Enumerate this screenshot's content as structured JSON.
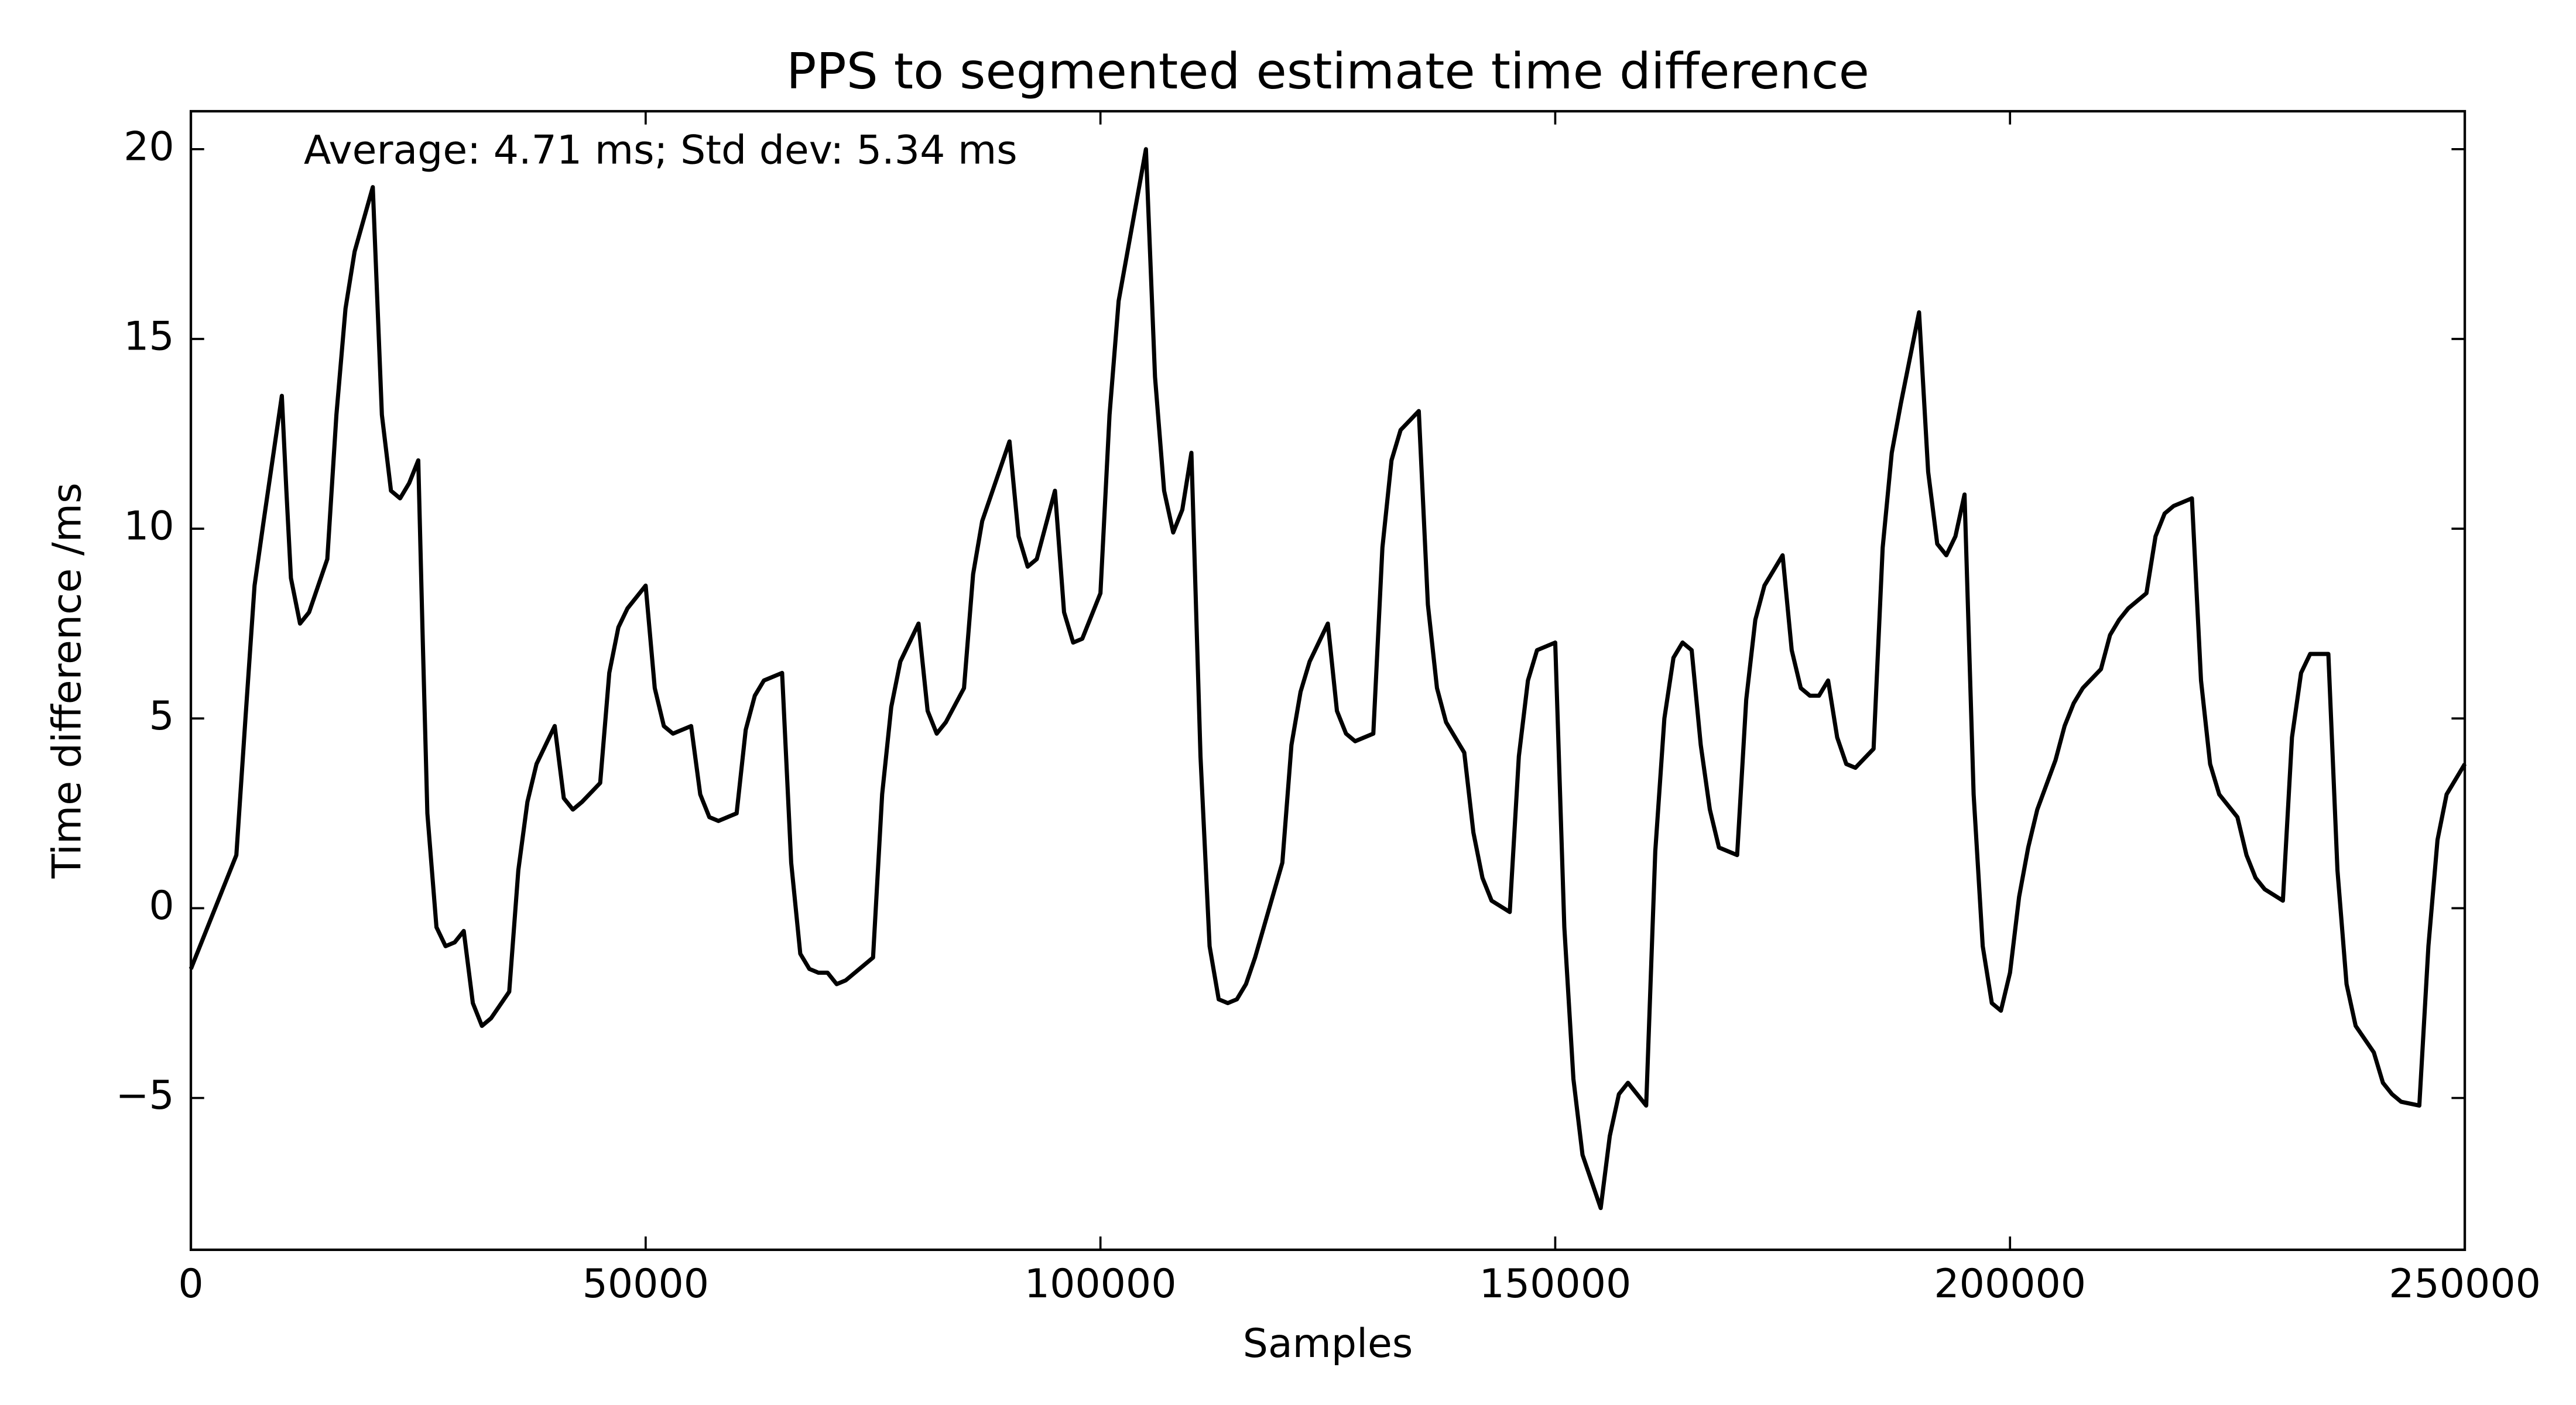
{
  "chart_data": {
    "type": "line",
    "title": "PPS to segmented estimate time difference",
    "annotation": "Average: 4.71 ms;  Std dev: 5.34 ms",
    "xlabel": "Samples",
    "ylabel": "Time difference /ms",
    "xlim": [
      0,
      250000
    ],
    "ylim": [
      -9,
      21
    ],
    "xticks": [
      0,
      50000,
      100000,
      150000,
      200000,
      250000
    ],
    "yticks": [
      {
        "value": -5,
        "label": "−5"
      },
      0,
      5,
      10,
      15,
      20
    ],
    "grid": false,
    "series": [
      {
        "color": "#000000",
        "x": [
          0,
          5000,
          6000,
          7000,
          8000,
          10000,
          10500,
          11000,
          12000,
          13000,
          15000,
          16000,
          17000,
          18000,
          20000,
          20500,
          21000,
          22000,
          23000,
          24000,
          25000,
          25500,
          26000,
          27000,
          28000,
          29000,
          30000,
          31000,
          32000,
          33000,
          35000,
          36000,
          37000,
          38000,
          40000,
          41000,
          42000,
          43000,
          45000,
          46000,
          47000,
          48000,
          50000,
          51000,
          52000,
          53000,
          55000,
          56000,
          57000,
          58000,
          60000,
          61000,
          62000,
          63000,
          65000,
          66000,
          67000,
          68000,
          69000,
          70000,
          71000,
          72000,
          75000,
          76000,
          77000,
          78000,
          80000,
          81000,
          82000,
          83000,
          85000,
          86000,
          87000,
          90000,
          91000,
          92000,
          93000,
          95000,
          96000,
          97000,
          98000,
          100000,
          101000,
          102000,
          105000,
          106000,
          107000,
          108000,
          109000,
          110000,
          111000,
          112000,
          113000,
          114000,
          115000,
          116000,
          117000,
          120000,
          121000,
          122000,
          123000,
          125000,
          126000,
          127000,
          128000,
          130000,
          131000,
          132000,
          133000,
          135000,
          136000,
          137000,
          138000,
          140000,
          141000,
          142000,
          143000,
          145000,
          146000,
          147000,
          148000,
          150000,
          151000,
          152000,
          153000,
          155000,
          156000,
          157000,
          158000,
          160000,
          161000,
          162000,
          163000,
          164000,
          165000,
          166000,
          167000,
          168000,
          170000,
          171000,
          172000,
          173000,
          175000,
          176000,
          177000,
          178000,
          179000,
          180000,
          181000,
          182000,
          183000,
          185000,
          186000,
          187000,
          188000,
          190000,
          191000,
          192000,
          193000,
          194000,
          195000,
          196000,
          197000,
          198000,
          199000,
          200000,
          201000,
          202000,
          203000,
          205000,
          206000,
          207000,
          208000,
          210000,
          211000,
          212000,
          213000,
          215000,
          216000,
          217000,
          218000,
          220000,
          221000,
          222000,
          223000,
          225000,
          226000,
          227000,
          228000,
          230000,
          231000,
          232000,
          233000,
          235000,
          236000,
          237000,
          238000,
          240000,
          241000,
          242000,
          243000,
          245000,
          246000,
          247000,
          248000,
          250000
        ],
        "values": [
          -1.6,
          1.4,
          5,
          8.5,
          10.2,
          13.5,
          11,
          8.7,
          7.5,
          7.8,
          9.2,
          13,
          15.8,
          17.3,
          19,
          16,
          13,
          11,
          10.8,
          11.2,
          11.8,
          7,
          2.5,
          -0.5,
          -1,
          -0.9,
          -0.6,
          -2.5,
          -3.1,
          -2.9,
          -2.2,
          1,
          2.8,
          3.8,
          4.8,
          2.9,
          2.6,
          2.8,
          3.3,
          6.2,
          7.4,
          7.9,
          8.5,
          5.8,
          4.8,
          4.6,
          4.8,
          3,
          2.4,
          2.3,
          2.5,
          4.7,
          5.6,
          6,
          6.2,
          1.2,
          -1.2,
          -1.6,
          -1.7,
          -1.7,
          -2,
          -1.9,
          -1.3,
          3,
          5.3,
          6.5,
          7.5,
          5.2,
          4.6,
          4.9,
          5.8,
          8.8,
          10.2,
          12.3,
          9.8,
          9,
          9.2,
          11,
          7.8,
          7,
          7.1,
          8.3,
          13,
          16,
          20,
          14,
          11,
          9.9,
          10.5,
          12,
          4,
          -1,
          -2.4,
          -2.5,
          -2.4,
          -2,
          -1.3,
          1.2,
          4.3,
          5.7,
          6.5,
          7.5,
          5.2,
          4.6,
          4.4,
          4.6,
          9.5,
          11.8,
          12.6,
          13.1,
          8,
          5.8,
          4.9,
          4.1,
          2,
          0.8,
          0.2,
          -0.1,
          4,
          6,
          6.8,
          7,
          -0.5,
          -4.5,
          -6.5,
          -7.9,
          -6,
          -4.9,
          -4.6,
          -5.2,
          1.5,
          5,
          6.6,
          7,
          6.8,
          4.3,
          2.6,
          1.6,
          1.4,
          5.5,
          7.6,
          8.5,
          9.3,
          6.8,
          5.8,
          5.6,
          5.6,
          6,
          4.5,
          3.8,
          3.7,
          4.2,
          9.5,
          12,
          13.3,
          15.7,
          11.5,
          9.6,
          9.3,
          9.8,
          10.9,
          3,
          -1,
          -2.5,
          -2.7,
          -1.7,
          0.3,
          1.6,
          2.6,
          3.9,
          4.8,
          5.4,
          5.8,
          6.3,
          7.2,
          7.6,
          7.9,
          8.3,
          9.8,
          10.4,
          10.6,
          10.8,
          6,
          3.8,
          3,
          2.4,
          1.4,
          0.8,
          0.5,
          0.2,
          4.5,
          6.2,
          6.7,
          6.7,
          1,
          -2,
          -3.1,
          -3.8,
          -4.6,
          -4.9,
          -5.1,
          -5.2,
          -1,
          1.8,
          3,
          3.8
        ]
      }
    ]
  }
}
